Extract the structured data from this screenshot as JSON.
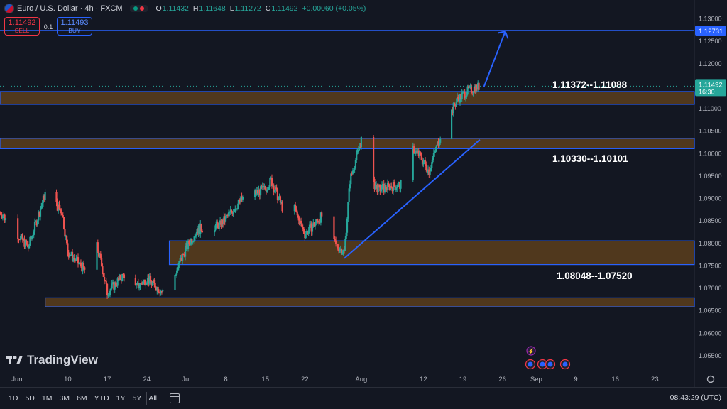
{
  "header": {
    "symbol_title": "Euro / U.S. Dollar · 4h · FXCM",
    "ohlc": [
      {
        "key": "O",
        "value": "1.11432"
      },
      {
        "key": "H",
        "value": "1.11648"
      },
      {
        "key": "L",
        "value": "1.11272"
      },
      {
        "key": "C",
        "value": "1.11492"
      },
      {
        "key": "",
        "value": "+0.00060 (+0.05%)"
      }
    ],
    "status_colors": [
      "#089981",
      "#f23645"
    ]
  },
  "trade": {
    "sell_price": "1.11492",
    "sell_label": "SELL",
    "qty": "0.1",
    "buy_price": "1.11493",
    "buy_label": "BUY"
  },
  "brand": {
    "logo_text": "TradingView"
  },
  "bottom_bar": {
    "ranges": [
      "1D",
      "5D",
      "1M",
      "3M",
      "6M",
      "YTD",
      "1Y",
      "5Y",
      "All"
    ],
    "clock": "08:43:29 (UTC)"
  },
  "colors": {
    "background": "#131722",
    "up": "#26a69a",
    "down": "#ef5350",
    "zone_fill": "#5c3e1c",
    "zone_border": "#2962ff",
    "line": "#2962ff",
    "price_tag": "#26a69a"
  },
  "chart_data": {
    "type": "candlestick",
    "title": "Euro / U.S. Dollar · 4h · FXCM",
    "ylim": [
      1.05,
      1.13
    ],
    "y_ticks": [
      "1.05000",
      "1.05500",
      "1.06000",
      "1.06500",
      "1.07000",
      "1.07500",
      "1.08000",
      "1.08500",
      "1.09000",
      "1.09500",
      "1.10000",
      "1.10500",
      "1.11000",
      "1.11500",
      "1.12000",
      "1.12500",
      "1.13000"
    ],
    "x_ticks": [
      "Jun",
      "10",
      "17",
      "24",
      "Jul",
      "8",
      "15",
      "22",
      "Aug",
      "12",
      "19",
      "26",
      "Sep",
      "9",
      "16",
      "23"
    ],
    "x_tick_days": [
      0,
      9,
      16,
      23,
      30,
      37,
      44,
      51,
      61,
      72,
      79,
      86,
      92,
      99,
      106,
      113
    ],
    "x_range_days": [
      -3,
      120
    ],
    "last_price": "1.11492",
    "last_price_countdown": "16:30",
    "target_price": "1.12731",
    "zones": [
      {
        "label": "1.11372--1.11088",
        "top": 1.11372,
        "bottom": 1.11088,
        "x_start": -3
      },
      {
        "label": "1.10330--1.10101",
        "top": 1.1033,
        "bottom": 1.10101,
        "x_start": -3
      },
      {
        "label": "1.08048--1.07520",
        "top": 1.08048,
        "bottom": 1.0752,
        "x_start": 27
      },
      {
        "label": "",
        "top": 1.0678,
        "bottom": 1.0658,
        "x_start": 5
      }
    ],
    "target_line": {
      "price": 1.12731
    },
    "trendline": {
      "from": [
        58,
        1.0766
      ],
      "to": [
        82,
        1.103
      ]
    },
    "arrow": {
      "from": [
        82.7,
        1.1147
      ],
      "to": [
        86.5,
        1.1271
      ]
    },
    "candles_summary": {
      "anchors_day_close": [
        [
          -3,
          1.087
        ],
        [
          2,
          1.079
        ],
        [
          5,
          1.091
        ],
        [
          8,
          1.087
        ],
        [
          9,
          1.078
        ],
        [
          12,
          1.074
        ],
        [
          13,
          1.085
        ],
        [
          15,
          1.075
        ],
        [
          16,
          1.069
        ],
        [
          19,
          1.073
        ],
        [
          21,
          1.07
        ],
        [
          23,
          1.072
        ],
        [
          26,
          1.069
        ],
        [
          28,
          1.073
        ],
        [
          30,
          1.079
        ],
        [
          32,
          1.083
        ],
        [
          36,
          1.084
        ],
        [
          40,
          1.09
        ],
        [
          44,
          1.092
        ],
        [
          45,
          1.094
        ],
        [
          47,
          1.088
        ],
        [
          49,
          1.088
        ],
        [
          51,
          1.082
        ],
        [
          54,
          1.086
        ],
        [
          56,
          1.08
        ],
        [
          58,
          1.078
        ],
        [
          59,
          1.094
        ],
        [
          61,
          1.103
        ],
        [
          62,
          1.095
        ],
        [
          64,
          1.092
        ],
        [
          68,
          1.093
        ],
        [
          70,
          1.101
        ],
        [
          71,
          1.1
        ],
        [
          73,
          1.096
        ],
        [
          75,
          1.104
        ],
        [
          78,
          1.112
        ],
        [
          80,
          1.114
        ],
        [
          82,
          1.1149
        ]
      ]
    }
  }
}
